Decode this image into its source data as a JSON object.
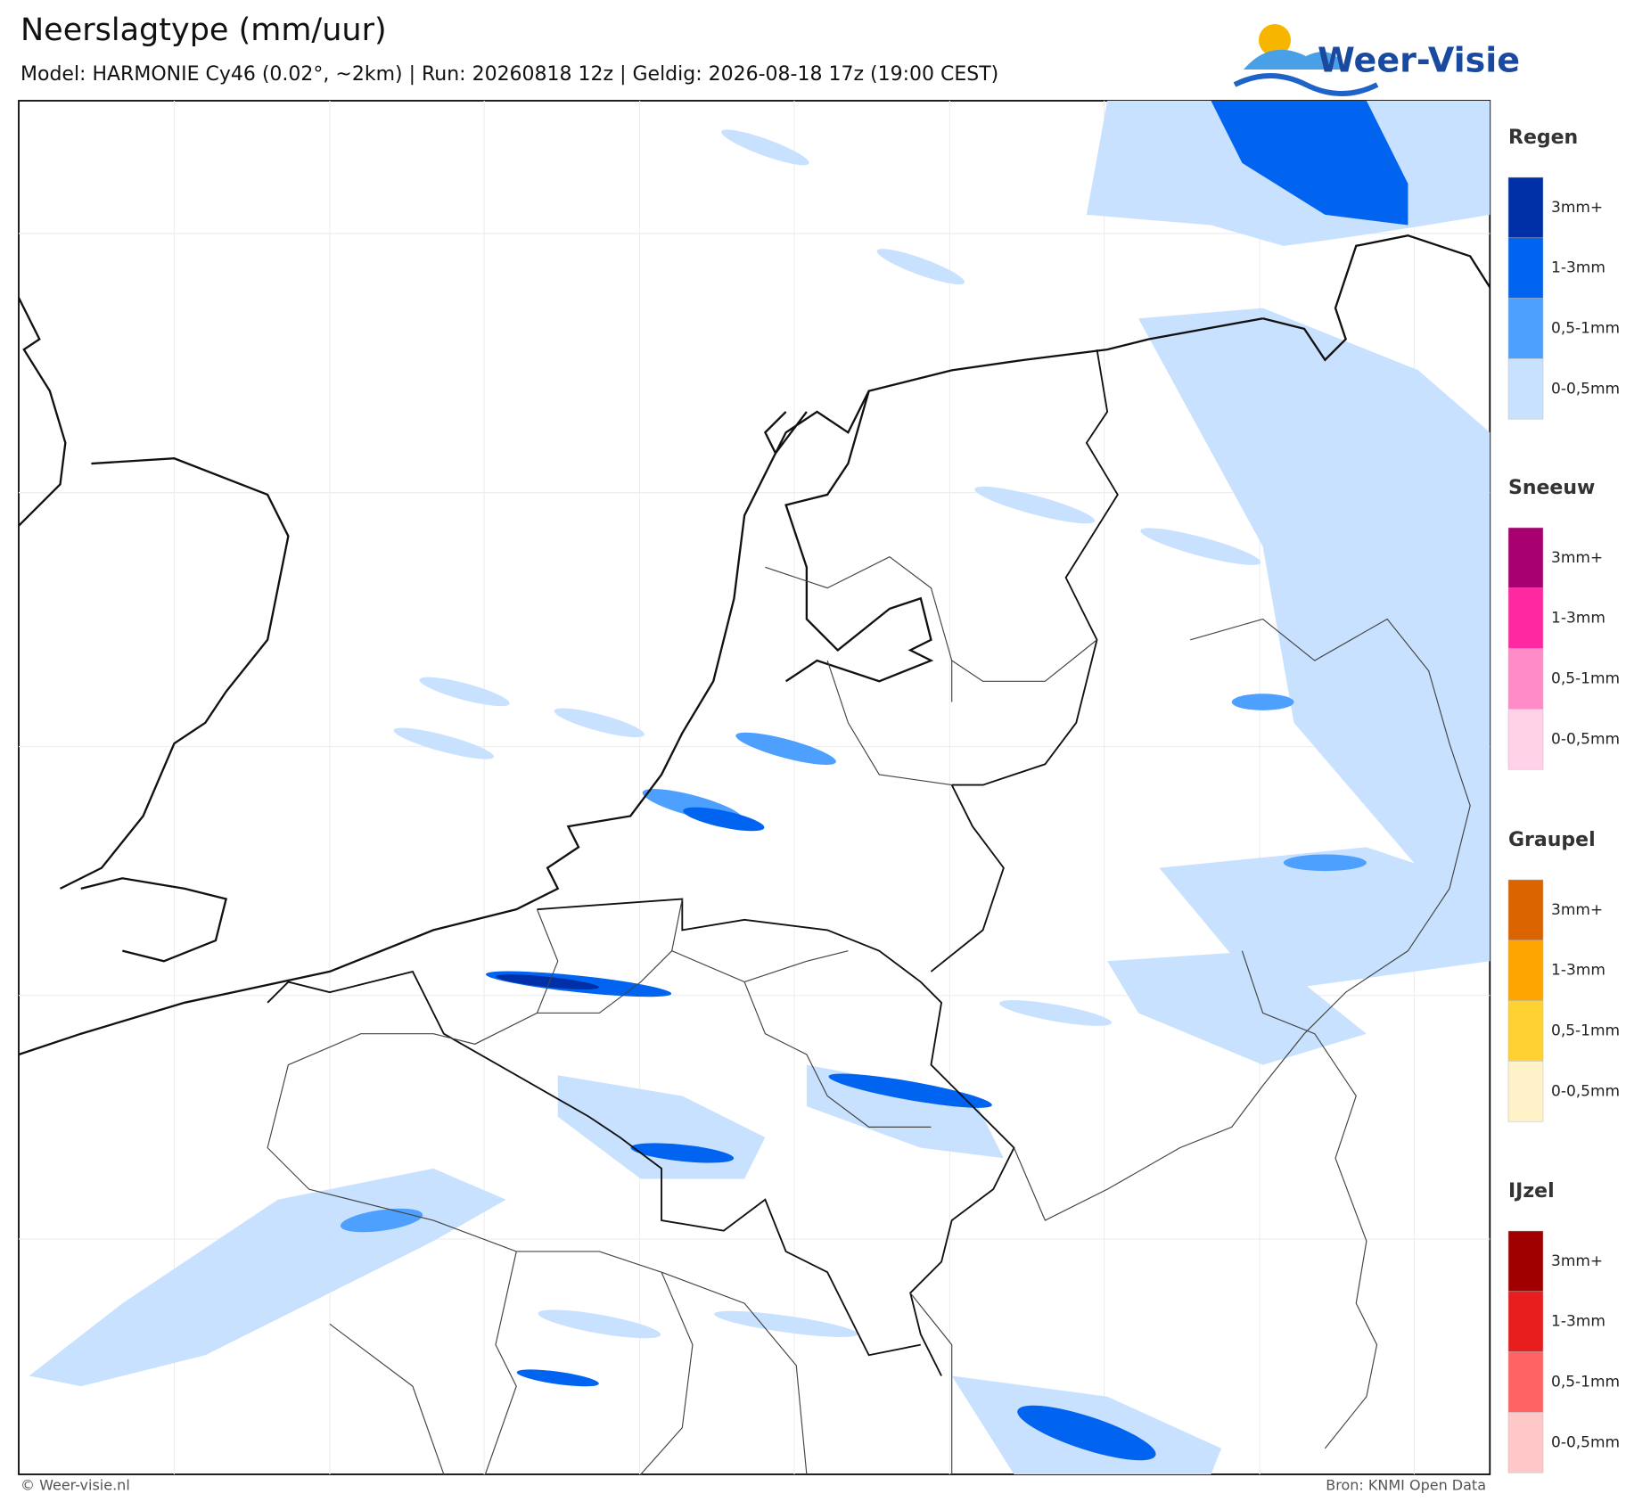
{
  "header": {
    "title": "Neerslagtype (mm/uur)",
    "subtitle": "Model: HARMONIE Cy46 (0.02°, ~2km)  |  Run: 20260818 12z  |  Geldig: 2026-08-18 17z (19:00 CEST)"
  },
  "logo": {
    "text": "Weer-Visie"
  },
  "legend": [
    {
      "title": "Regen",
      "colors": [
        "#0030a8",
        "#0064f0",
        "#4ea0ff",
        "#c8e1ff"
      ],
      "labels": [
        "3mm+",
        "1-3mm",
        "0,5-1mm",
        "0-0,5mm"
      ]
    },
    {
      "title": "Sneeuw",
      "colors": [
        "#a8006e",
        "#ff28a0",
        "#ff8cc8",
        "#ffd2e8"
      ],
      "labels": [
        "3mm+",
        "1-3mm",
        "0,5-1mm",
        "0-0,5mm"
      ]
    },
    {
      "title": "Graupel",
      "colors": [
        "#dc6400",
        "#ffa500",
        "#ffd232",
        "#fff2c8"
      ],
      "labels": [
        "3mm+",
        "1-3mm",
        "0,5-1mm",
        "0-0,5mm"
      ]
    },
    {
      "title": "IJzel",
      "colors": [
        "#a00000",
        "#e81e1e",
        "#ff6464",
        "#ffc8c8"
      ],
      "labels": [
        "3mm+",
        "1-3mm",
        "0,5-1mm",
        "0-0,5mm"
      ]
    }
  ],
  "footer": {
    "left": "© Weer-visie.nl",
    "right": "Bron: KNMI Open Data"
  }
}
